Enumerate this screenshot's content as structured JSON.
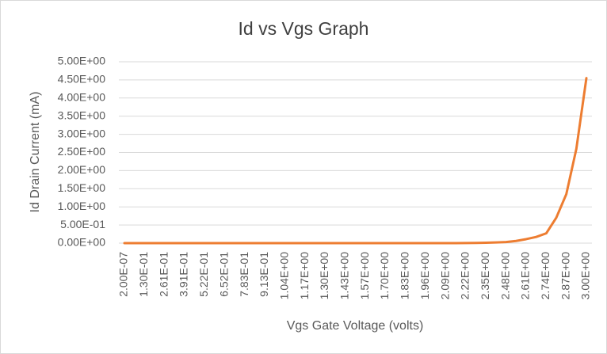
{
  "chart_data": {
    "type": "line",
    "title": "Id vs Vgs Graph",
    "x_label": "Vgs Gate Voltage (volts)",
    "y_label": "Id Drain Current (mA)",
    "categories": [
      "2.00E-07",
      null,
      "1.30E-01",
      null,
      "2.61E-01",
      null,
      "3.91E-01",
      null,
      "5.22E-01",
      null,
      "6.52E-01",
      null,
      "7.83E-01",
      null,
      "9.13E-01",
      null,
      "1.04E+00",
      null,
      "1.17E+00",
      null,
      "1.30E+00",
      null,
      "1.43E+00",
      null,
      "1.57E+00",
      null,
      "1.70E+00",
      null,
      "1.83E+00",
      null,
      "1.96E+00",
      null,
      "2.09E+00",
      null,
      "2.22E+00",
      null,
      "2.35E+00",
      null,
      "2.48E+00",
      null,
      "2.61E+00",
      null,
      "2.74E+00",
      null,
      "2.87E+00",
      null,
      "3.00E+00"
    ],
    "series": [
      {
        "name": "Id",
        "color": "#ed7d31",
        "values": [
          0,
          0,
          0,
          0,
          0,
          0,
          0,
          0,
          0,
          0,
          0,
          0,
          0,
          0,
          0,
          0,
          0,
          0,
          0,
          0,
          0,
          0,
          0,
          0,
          0,
          0,
          0,
          0,
          0,
          0,
          0,
          0,
          0,
          0,
          0.002,
          0.005,
          0.01,
          0.02,
          0.03,
          0.06,
          0.11,
          0.17,
          0.27,
          0.7,
          1.35,
          2.6,
          4.55
        ]
      }
    ],
    "ylim": [
      0,
      5
    ],
    "yticks": [
      {
        "value": 0,
        "label": "0.00E+00"
      },
      {
        "value": 0.5,
        "label": "5.00E-01"
      },
      {
        "value": 1,
        "label": "1.00E+00"
      },
      {
        "value": 1.5,
        "label": "1.50E+00"
      },
      {
        "value": 2,
        "label": "2.00E+00"
      },
      {
        "value": 2.5,
        "label": "2.50E+00"
      },
      {
        "value": 3,
        "label": "3.00E+00"
      },
      {
        "value": 3.5,
        "label": "3.50E+00"
      },
      {
        "value": 4,
        "label": "4.00E+00"
      },
      {
        "value": 4.5,
        "label": "4.50E+00"
      },
      {
        "value": 5,
        "label": "5.00E+00"
      }
    ],
    "grid": true
  }
}
